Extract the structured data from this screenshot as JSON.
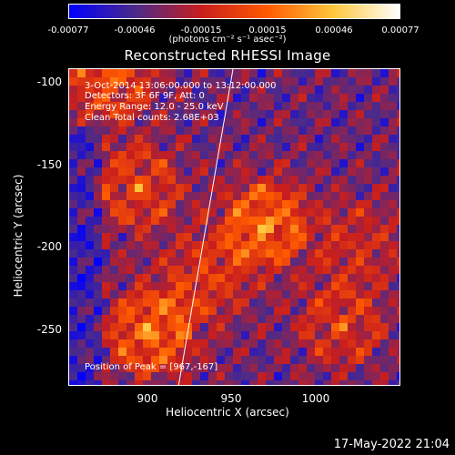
{
  "colorbar": {
    "tick_labels": [
      "-0.00077",
      "-0.00046",
      "-0.00015",
      "0.00015",
      "0.00046",
      "0.00077"
    ],
    "units": "(photons cm⁻² s⁻¹ asec⁻²)"
  },
  "title": "Reconstructed RHESSI Image",
  "info": {
    "time_range": "3-Oct-2014 13:06:00.000 to 13:12:00.000",
    "detectors": "Detectors: 3F 6F 9F, Att: 0",
    "energy_range": "Energy Range: 12.0 - 25.0 keV",
    "method_counts": "Clean    Total counts: 2.68E+03",
    "peak": "Position of Peak = [967,-167]"
  },
  "axes": {
    "x_label": "Heliocentric X (arcsec)",
    "y_label": "Heliocentric Y (arcsec)",
    "x_ticks": [
      "900",
      "950",
      "1000"
    ],
    "y_ticks": [
      "-100",
      "-150",
      "-200",
      "-250"
    ]
  },
  "timestamp": "17-May-2022 21:04",
  "colors": {
    "colormap": [
      "#0000ff",
      "#4b2a8a",
      "#c81e1e",
      "#ff5a00",
      "#ffc83c",
      "#ffffff"
    ],
    "limb_line": "#ffffff",
    "background": "#000000"
  }
}
